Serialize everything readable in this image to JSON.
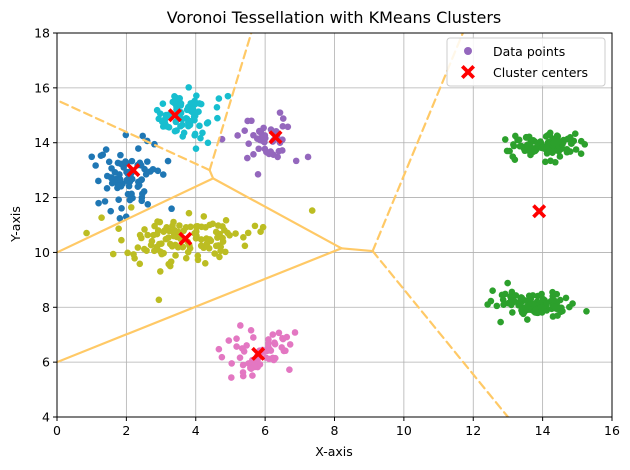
{
  "chart_data": {
    "type": "scatter",
    "title": "Voronoi Tessellation with KMeans Clusters",
    "xlabel": "X-axis",
    "ylabel": "Y-axis",
    "xlim": [
      0,
      16
    ],
    "ylim": [
      4,
      18
    ],
    "xticks": [
      0,
      2,
      4,
      6,
      8,
      10,
      12,
      14,
      16
    ],
    "yticks": [
      4,
      6,
      8,
      10,
      12,
      14,
      16,
      18
    ],
    "grid": true,
    "legend": {
      "position": "top-right",
      "entries": [
        "Data points",
        "Cluster centers"
      ]
    },
    "clusters": [
      {
        "name": "blue",
        "color": "#1f77b4",
        "center": [
          2.0,
          12.8
        ],
        "spread": [
          0.45,
          0.8
        ],
        "count": 80,
        "seed": 11
      },
      {
        "name": "cyan",
        "color": "#17becf",
        "center": [
          3.6,
          15.0
        ],
        "spread": [
          0.55,
          0.45
        ],
        "count": 80,
        "seed": 23
      },
      {
        "name": "purple",
        "color": "#9467bd",
        "center": [
          6.2,
          14.1
        ],
        "spread": [
          0.5,
          0.4
        ],
        "count": 50,
        "seed": 37
      },
      {
        "name": "olive",
        "color": "#bcbd22",
        "center": [
          3.7,
          10.5
        ],
        "spread": [
          1.0,
          0.5
        ],
        "count": 120,
        "seed": 41
      },
      {
        "name": "pink",
        "color": "#e377c2",
        "center": [
          5.9,
          6.4
        ],
        "spread": [
          0.55,
          0.45
        ],
        "count": 60,
        "seed": 53
      },
      {
        "name": "green-upper",
        "color": "#2ca02c",
        "center": [
          14.0,
          13.9
        ],
        "spread": [
          0.55,
          0.2
        ],
        "count": 100,
        "seed": 67
      },
      {
        "name": "green-lower",
        "color": "#2ca02c",
        "center": [
          13.7,
          8.1
        ],
        "spread": [
          0.6,
          0.25
        ],
        "count": 100,
        "seed": 79
      }
    ],
    "cluster_centers": [
      [
        2.2,
        13.0
      ],
      [
        3.4,
        15.0
      ],
      [
        6.3,
        14.2
      ],
      [
        3.7,
        10.5
      ],
      [
        5.8,
        6.3
      ],
      [
        13.9,
        11.5
      ]
    ],
    "voronoi_edges": [
      {
        "from": [
          4.5,
          12.7
        ],
        "to": [
          8.2,
          10.15
        ],
        "dashed": false
      },
      {
        "from": [
          8.2,
          10.15
        ],
        "to": [
          9.1,
          10.05
        ],
        "dashed": false
      },
      {
        "from": [
          0.0,
          10.0
        ],
        "to": [
          4.5,
          12.7
        ],
        "dashed": false
      },
      {
        "from": [
          0.0,
          6.0
        ],
        "to": [
          8.2,
          10.15
        ],
        "dashed": false
      },
      {
        "from": [
          4.5,
          12.7
        ],
        "to": [
          4.4,
          13.0
        ],
        "dashed": false
      },
      {
        "from": [
          4.4,
          13.0
        ],
        "to": [
          0.0,
          15.55
        ],
        "dashed": true
      },
      {
        "from": [
          4.4,
          13.0
        ],
        "to": [
          5.6,
          18.0
        ],
        "dashed": true
      },
      {
        "from": [
          9.1,
          10.05
        ],
        "to": [
          11.7,
          18.0
        ],
        "dashed": true
      },
      {
        "from": [
          9.1,
          10.05
        ],
        "to": [
          13.0,
          4.0
        ],
        "dashed": true
      }
    ],
    "colors": {
      "legend_point": "#9467bd",
      "center_marker": "#ff0000",
      "voronoi_line": "#ffc966",
      "grid": "#b0b0b0"
    }
  }
}
